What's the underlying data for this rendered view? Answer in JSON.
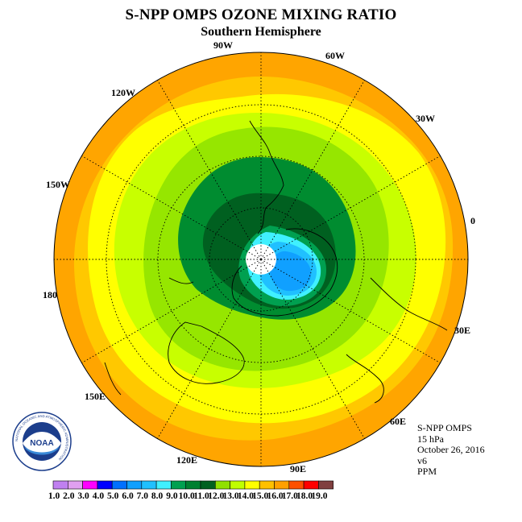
{
  "header": {
    "title": "S-NPP OMPS OZONE MIXING RATIO",
    "subtitle": "Southern Hemisphere"
  },
  "longitude_labels": [
    "90W",
    "60W",
    "30W",
    "0",
    "30E",
    "60E",
    "90E",
    "120E",
    "150E",
    "180",
    "150W",
    "120W"
  ],
  "info": {
    "instrument": "S-NPP OMPS",
    "level": "15 hPa",
    "date": "October 26, 2016",
    "version": "v6",
    "units": "PPM"
  },
  "logo": {
    "text": "NOAA",
    "ring_text": "NATIONAL OCEANIC AND ATMOSPHERIC ADMINISTRATION"
  },
  "colorbar": {
    "ticks": [
      "1.0",
      "2.0",
      "3.0",
      "4.0",
      "5.0",
      "6.0",
      "7.0",
      "8.0",
      "9.0",
      "10.0",
      "11.0",
      "12.0",
      "13.0",
      "14.0",
      "15.0",
      "16.0",
      "17.0",
      "18.0",
      "19.0"
    ],
    "colors": [
      "#c080f0",
      "#e0a0f0",
      "#ff00ff",
      "#0000ff",
      "#0070ff",
      "#10a0ff",
      "#20c0ff",
      "#40f0ff",
      "#00a050",
      "#008030",
      "#006020",
      "#90e000",
      "#c0ff00",
      "#ffff00",
      "#ffc000",
      "#ffa000",
      "#ff5000",
      "#ff0000",
      "#804040"
    ]
  },
  "map_colors": {
    "outer": "#ffa500",
    "band_15": "#ffc800",
    "band_14": "#ffff00",
    "band_13": "#c8ff00",
    "band_12": "#96e600",
    "band_11": "#008c30",
    "band_10": "#006020",
    "band_9": "#00a050",
    "band_8": "#40f0ff",
    "band_7": "#20c0ff",
    "band_6": "#10a0ff",
    "pole": "#ffffff"
  }
}
